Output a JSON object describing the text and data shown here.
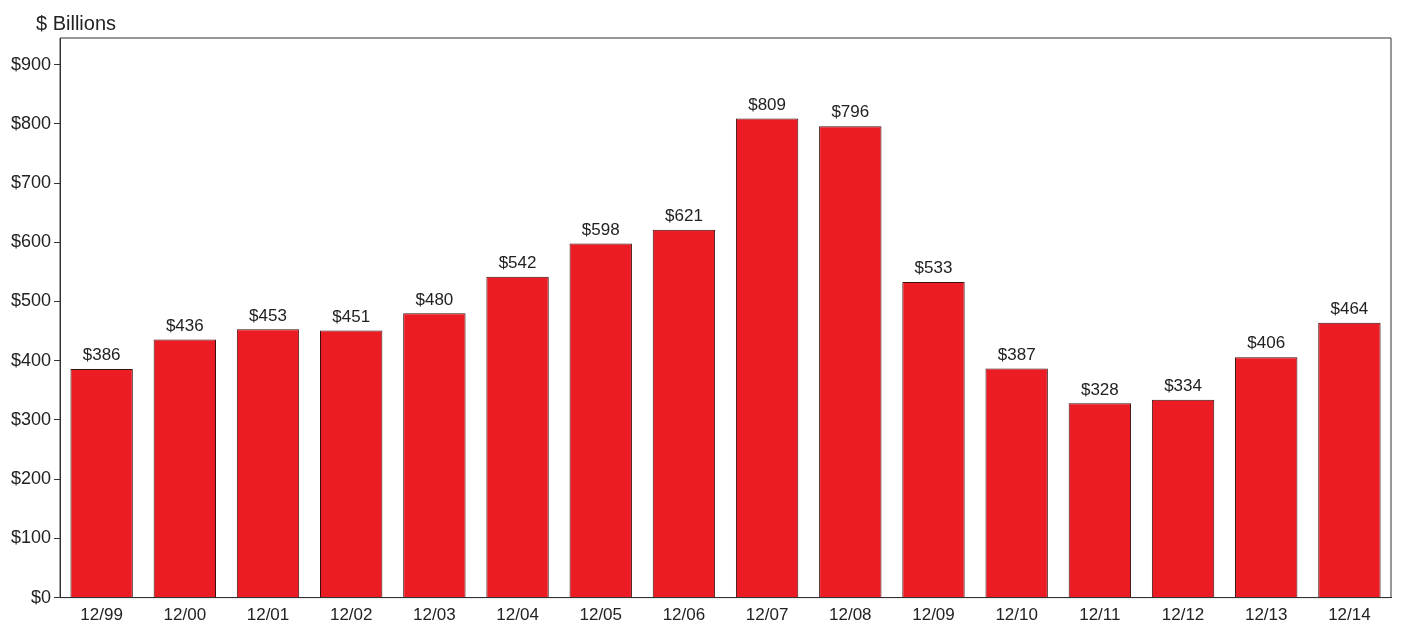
{
  "chart_data": {
    "type": "bar",
    "ylabel": "$ Billions",
    "categories": [
      "12/99",
      "12/00",
      "12/01",
      "12/02",
      "12/03",
      "12/04",
      "12/05",
      "12/06",
      "12/07",
      "12/08",
      "12/09",
      "12/10",
      "12/11",
      "12/12",
      "12/13",
      "12/14"
    ],
    "values": [
      386,
      436,
      453,
      451,
      480,
      542,
      598,
      621,
      809,
      796,
      533,
      387,
      328,
      334,
      406,
      464
    ],
    "value_labels": [
      "$386",
      "$436",
      "$453",
      "$451",
      "$480",
      "$542",
      "$598",
      "$621",
      "$809",
      "$796",
      "$533",
      "$387",
      "$328",
      "$334",
      "$406",
      "$464"
    ],
    "color": "#ec1c24",
    "ylim": [
      0,
      945
    ],
    "yticks": [
      {
        "value": 0,
        "label": "$0"
      },
      {
        "value": 100,
        "label": "$100"
      },
      {
        "value": 200,
        "label": "$200"
      },
      {
        "value": 300,
        "label": "$300"
      },
      {
        "value": 400,
        "label": "$400"
      },
      {
        "value": 500,
        "label": "$500"
      },
      {
        "value": 600,
        "label": "$600"
      },
      {
        "value": 700,
        "label": "$700"
      },
      {
        "value": 800,
        "label": "$800"
      },
      {
        "value": 900,
        "label": "$900"
      }
    ],
    "grid": false,
    "legend": false
  }
}
